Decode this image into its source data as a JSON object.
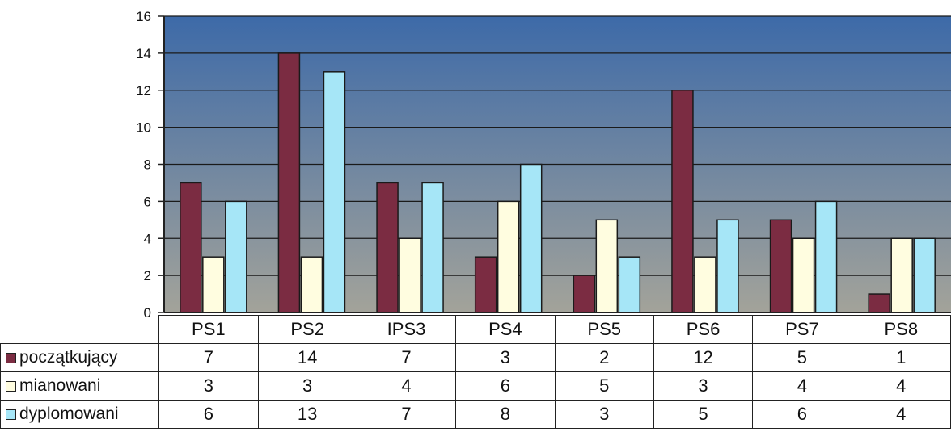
{
  "chart_data": {
    "type": "bar",
    "categories": [
      "PS1",
      "PS2",
      "IPS3",
      "PS4",
      "PS5",
      "PS6",
      "PS7",
      "PS8"
    ],
    "series": [
      {
        "name": "początkujący",
        "values": [
          7,
          14,
          7,
          3,
          2,
          12,
          5,
          1
        ],
        "color": "#7b2c42"
      },
      {
        "name": "mianowani",
        "values": [
          3,
          3,
          4,
          6,
          5,
          3,
          4,
          4
        ],
        "color": "#fffde0"
      },
      {
        "name": "dyplomowani",
        "values": [
          6,
          13,
          7,
          8,
          3,
          5,
          6,
          4
        ],
        "color": "#a6e6f7"
      }
    ],
    "ylim": [
      0,
      16
    ],
    "yticks": [
      0,
      2,
      4,
      6,
      8,
      10,
      12,
      14,
      16
    ],
    "grid": true,
    "legend": "data-table",
    "background_gradient": [
      "#3d6aa8",
      "#a3a39a"
    ]
  }
}
